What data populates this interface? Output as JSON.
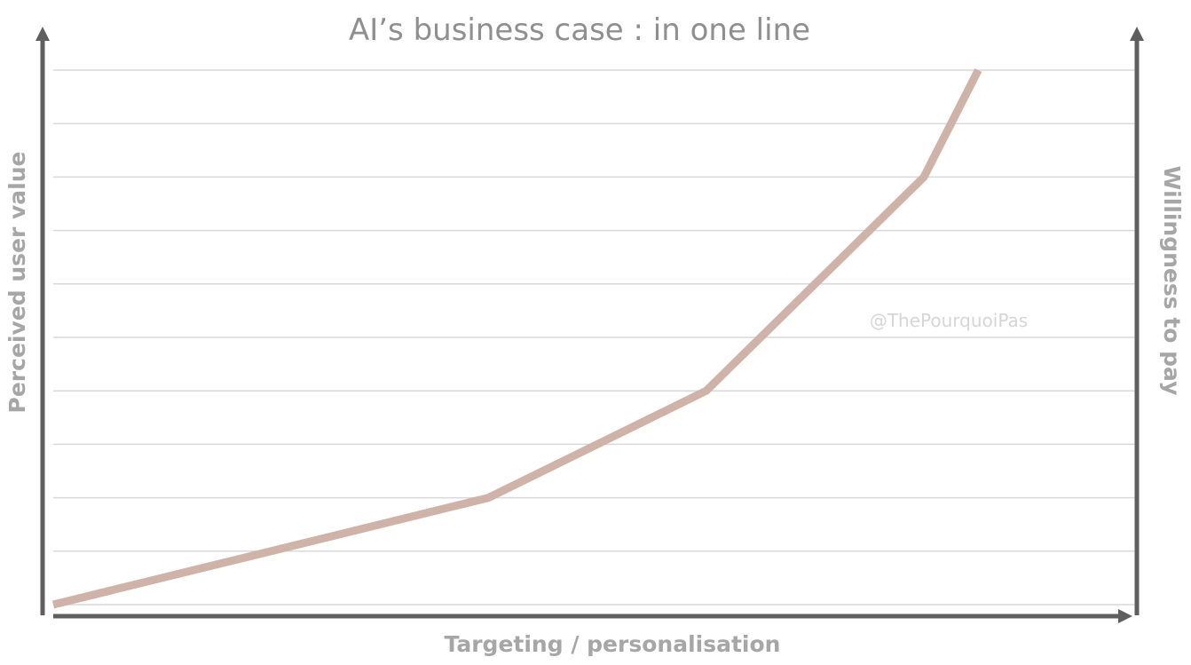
{
  "chart_data": {
    "type": "line",
    "title": "AI’s business case : in one line",
    "xlabel": "Targeting / personalisation",
    "ylabel": "Perceived user value",
    "y2label": "Willingness to pay",
    "annotation": "@ThePourquoiPas",
    "grid": true,
    "ylim": [
      0,
      10
    ],
    "xlim": [
      0,
      5
    ],
    "series": [
      {
        "color": "#cfb3a8",
        "points": [
          {
            "x": 0,
            "y": 0
          },
          {
            "x": 2,
            "y": 2
          },
          {
            "x": 3,
            "y": 4
          },
          {
            "x": 4,
            "y": 8
          },
          {
            "x": 4.25,
            "y": 10
          }
        ]
      }
    ],
    "colors": {
      "axis": "#5f5f5f",
      "grid": "#d9d9d9",
      "line": "#cfb3a8"
    }
  }
}
